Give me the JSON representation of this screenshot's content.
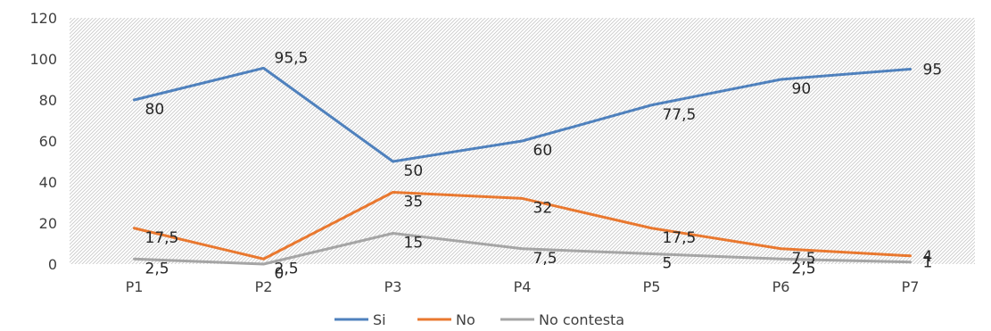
{
  "chart_data": {
    "type": "line",
    "title": "",
    "xlabel": "",
    "ylabel": "",
    "categories": [
      "P1",
      "P2",
      "P3",
      "P4",
      "P5",
      "P6",
      "P7"
    ],
    "ylim": [
      0,
      120
    ],
    "yticks": [
      "0",
      "20",
      "40",
      "60",
      "80",
      "100",
      "120"
    ],
    "grid": true,
    "legend_position": "bottom",
    "series": [
      {
        "name": "Si",
        "color": "#4f81bd",
        "values": [
          80,
          95.5,
          50,
          60,
          77.5,
          90,
          95
        ],
        "labels": [
          "80",
          "95,5",
          "50",
          "60",
          "77,5",
          "90",
          "95"
        ]
      },
      {
        "name": "No",
        "color": "#e9782f",
        "values": [
          17.5,
          2.5,
          35,
          32,
          17.5,
          7.5,
          4
        ],
        "labels": [
          "17,5",
          "2,5",
          "35",
          "32",
          "17,5",
          "7,5",
          "4"
        ]
      },
      {
        "name": "No contesta",
        "color": "#a5a5a5",
        "values": [
          2.5,
          0,
          15,
          7.5,
          5,
          2.5,
          1
        ],
        "labels": [
          "2,5",
          "0",
          "15",
          "7,5",
          "5",
          "2,5",
          "1"
        ]
      }
    ]
  }
}
